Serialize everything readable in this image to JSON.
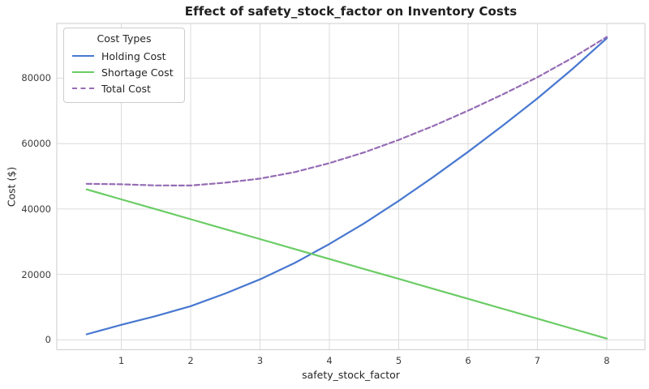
{
  "figure_title": "Effect of safety_stock_factor on Inventory Costs",
  "chart_data": {
    "type": "line",
    "title": "Effect of safety_stock_factor on Inventory Costs",
    "xlabel": "safety_stock_factor",
    "ylabel": "Cost ($)",
    "x_ticks": [
      1,
      2,
      3,
      4,
      5,
      6,
      7,
      8
    ],
    "y_ticks": [
      0,
      20000,
      40000,
      60000,
      80000
    ],
    "y_tick_labels": [
      "0",
      "20000",
      "40000",
      "60000",
      "80000"
    ],
    "xlim": [
      0.07,
      8.55
    ],
    "ylim": [
      -3000,
      96700
    ],
    "grid": true,
    "background": "#ffffff",
    "grid_color": "#dcdcdc",
    "spine_color": "#d4d4d4",
    "legend": {
      "title": "Cost Types",
      "position": "upper-left"
    },
    "x": [
      0.5,
      1,
      1.5,
      2,
      2.5,
      3,
      3.5,
      4,
      4.5,
      5,
      5.5,
      6,
      6.5,
      7,
      7.5,
      8
    ],
    "series": [
      {
        "name": "Holding Cost",
        "color": "#4878d0",
        "style": "solid",
        "values": [
          1700,
          4600,
          7300,
          10300,
          14200,
          18500,
          23500,
          29300,
          35600,
          42500,
          49800,
          57500,
          65500,
          73800,
          82700,
          92200
        ]
      },
      {
        "name": "Shortage Cost",
        "color": "#6acc64",
        "style": "solid",
        "values": [
          46000,
          42960,
          39920,
          36880,
          33840,
          30800,
          27760,
          24720,
          21680,
          18640,
          15600,
          12560,
          9520,
          6480,
          3440,
          400
        ]
      },
      {
        "name": "Total Cost",
        "color": "#956cb4",
        "style": "dashed",
        "values": [
          47700,
          47560,
          47220,
          47180,
          48040,
          49300,
          51260,
          54020,
          57280,
          61140,
          65400,
          70060,
          75020,
          80280,
          86140,
          92600
        ]
      }
    ]
  }
}
